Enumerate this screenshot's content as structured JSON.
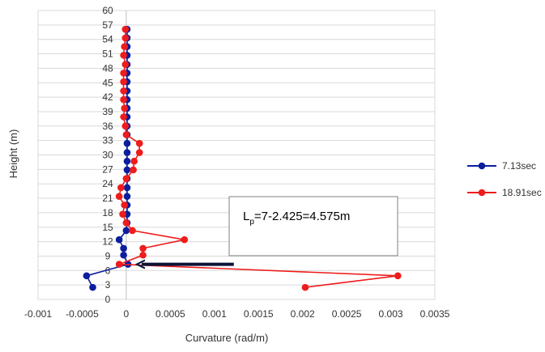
{
  "chart_data": {
    "type": "scatter",
    "xlabel": "Curvature (rad/m)",
    "ylabel": "Height (m)",
    "xlim": [
      -0.001,
      0.0035
    ],
    "ylim": [
      0,
      60
    ],
    "x_ticks": [
      "-0.001",
      "-0.0005",
      "0",
      "0.0005",
      "0.001",
      "0.0015",
      "0.002",
      "0.0025",
      "0.003",
      "0.0035"
    ],
    "y_ticks": [
      "0",
      "3",
      "6",
      "9",
      "12",
      "15",
      "18",
      "21",
      "24",
      "27",
      "30",
      "33",
      "36",
      "39",
      "42",
      "45",
      "48",
      "51",
      "54",
      "57",
      "60"
    ],
    "grid": "horizontal",
    "legend": "right",
    "series": [
      {
        "name": "7.13sec",
        "color": "#0a1e9e",
        "points": [
          [
            -0.00038,
            2.5
          ],
          [
            -0.00045,
            4.9
          ],
          [
            2e-05,
            7.3
          ],
          [
            -3e-05,
            9.2
          ],
          [
            -3e-05,
            10.6
          ],
          [
            -8e-05,
            12.4
          ],
          [
            0.0,
            14.3
          ],
          [
            1e-05,
            15.9
          ],
          [
            1e-05,
            17.7
          ],
          [
            1e-05,
            19.6
          ],
          [
            1e-05,
            21.4
          ],
          [
            1e-05,
            23.2
          ],
          [
            1e-05,
            25.1
          ],
          [
            1e-05,
            26.9
          ],
          [
            1e-05,
            28.7
          ],
          [
            1e-05,
            30.5
          ],
          [
            1e-05,
            32.4
          ],
          [
            1e-05,
            34.2
          ],
          [
            1e-05,
            36.0
          ],
          [
            1e-05,
            37.9
          ],
          [
            1e-05,
            39.7
          ],
          [
            1e-05,
            41.5
          ],
          [
            1e-05,
            43.3
          ],
          [
            1e-05,
            45.2
          ],
          [
            1e-05,
            47.0
          ],
          [
            1e-05,
            48.8
          ],
          [
            1e-05,
            50.7
          ],
          [
            1e-05,
            52.5
          ],
          [
            1e-05,
            54.3
          ],
          [
            1e-05,
            56.1
          ]
        ]
      },
      {
        "name": "18.91sec",
        "color": "#ee1c1c",
        "points": [
          [
            0.00203,
            2.5
          ],
          [
            0.00308,
            4.9
          ],
          [
            -8e-05,
            7.3
          ],
          [
            0.00019,
            9.2
          ],
          [
            0.00019,
            10.6
          ],
          [
            0.00066,
            12.4
          ],
          [
            7e-05,
            14.3
          ],
          [
            0.0,
            15.9
          ],
          [
            -4e-05,
            17.7
          ],
          [
            -2e-05,
            19.6
          ],
          [
            -8e-05,
            21.4
          ],
          [
            -6e-05,
            23.2
          ],
          [
            0.0,
            25.1
          ],
          [
            8e-05,
            26.9
          ],
          [
            9e-05,
            28.7
          ],
          [
            0.00015,
            30.5
          ],
          [
            0.00015,
            32.4
          ],
          [
            0.0,
            34.2
          ],
          [
            -1e-05,
            36.0
          ],
          [
            -3e-05,
            37.9
          ],
          [
            -2e-05,
            39.7
          ],
          [
            -3e-05,
            41.5
          ],
          [
            -3e-05,
            43.3
          ],
          [
            -3e-05,
            45.2
          ],
          [
            -3e-05,
            47.0
          ],
          [
            -1e-05,
            48.8
          ],
          [
            -3e-05,
            50.7
          ],
          [
            -2e-05,
            52.5
          ],
          [
            -1e-05,
            54.3
          ],
          [
            -1e-05,
            56.1
          ]
        ]
      }
    ],
    "annotation": {
      "text_main": "L",
      "text_sub": "p",
      "text_rest": "=7-2.425=4.575m",
      "arrow_from": [
        0.00122,
        7.3
      ],
      "arrow_to": [
        0.00012,
        7.3
      ],
      "arrow_color": "#0b1437"
    }
  }
}
